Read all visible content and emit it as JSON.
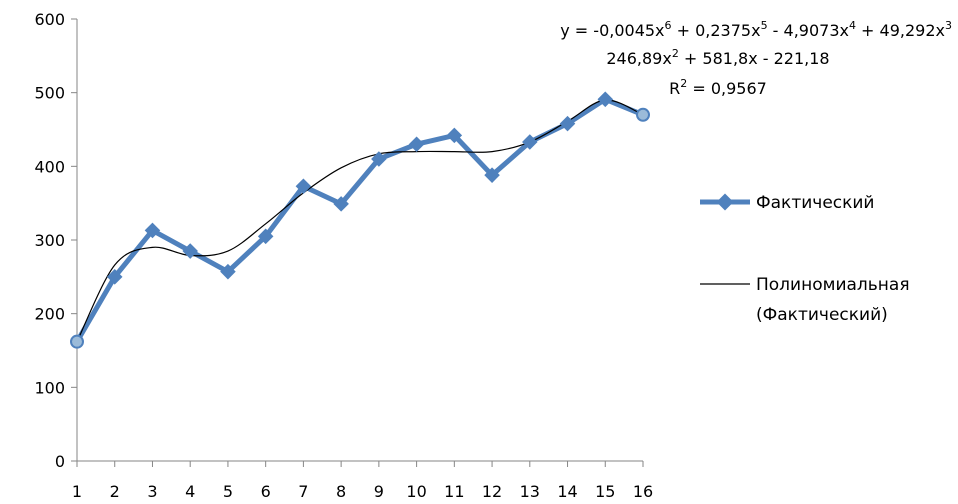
{
  "chart_data": {
    "type": "line",
    "x": [
      1,
      2,
      3,
      4,
      5,
      6,
      7,
      8,
      9,
      10,
      11,
      12,
      13,
      14,
      15,
      16
    ],
    "series": [
      {
        "name": "Фактический",
        "values": [
          162,
          250,
          313,
          285,
          257,
          305,
          373,
          349,
          410,
          430,
          442,
          388,
          433,
          458,
          491,
          470
        ],
        "color": "#4f81bd"
      },
      {
        "name": "Полиномиальная (Фактический)",
        "values": [
          162,
          266,
          290,
          279,
          285,
          322,
          364,
          398,
          417,
          420,
          420,
          420,
          433,
          461,
          490,
          470
        ],
        "color": "#000000"
      }
    ],
    "ylim": [
      0,
      600
    ],
    "yticks": [
      0,
      100,
      200,
      300,
      400,
      500,
      600
    ],
    "xticks": [
      "1",
      "2",
      "3",
      "4",
      "5",
      "6",
      "7",
      "8",
      "9",
      "10",
      "11",
      "12",
      "13",
      "14",
      "15",
      "16"
    ],
    "title": "",
    "xlabel": "",
    "ylabel": "",
    "grid": false,
    "legend_position": "right",
    "trendline": {
      "line1": {
        "a": "y = -0,0045x",
        "e1": "6",
        "b": " + 0,2375x",
        "e2": "5",
        "c": " - 4,9073x",
        "e3": "4",
        "d": " + 49,292x",
        "e4": "3"
      },
      "line2": {
        "a": "246,89x",
        "e1": "2",
        "b": " + 581,8x - 221,18"
      },
      "line3": {
        "a": "R",
        "e1": "2",
        "b": " = 0,9567"
      }
    }
  },
  "legend": {
    "series1": "Фактический",
    "series2_line1": "Полиномиальная",
    "series2_line2": "(Фактический)"
  }
}
